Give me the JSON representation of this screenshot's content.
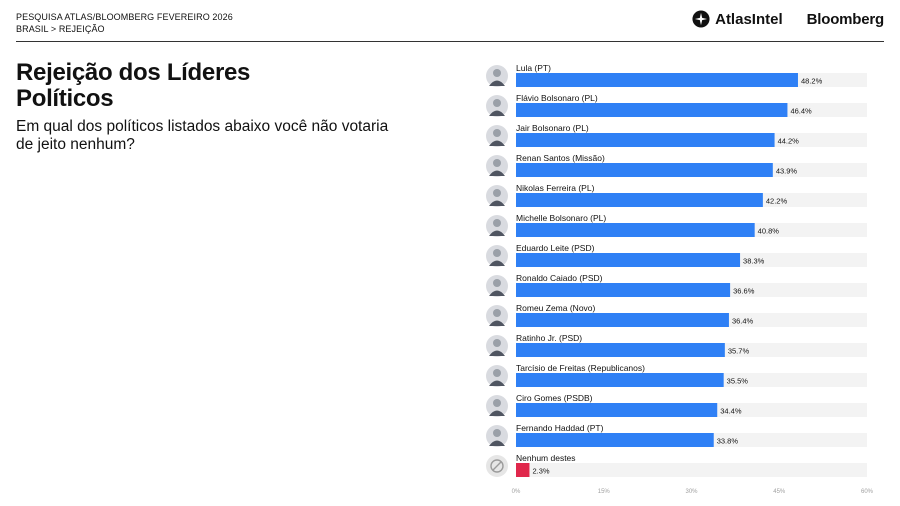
{
  "header": {
    "survey_line": "PESQUISA ATLAS/BLOOMBERG FEVEREIRO 2026",
    "breadcrumb": "BRASIL > REJEIÇÃO",
    "atlas_logo_text": "AtlasIntel",
    "bloomberg_logo_text": "Bloomberg"
  },
  "title": "Rejeição dos Líderes Políticos",
  "subtitle": "Em qual dos políticos listados abaixo você não votaria de jeito nenhum?",
  "colors": {
    "bar": "#2F80F5",
    "bar_highlight": "#E0284C",
    "track": "#F3F3F3",
    "text": "#111111"
  },
  "chart_data": {
    "type": "bar",
    "orientation": "horizontal",
    "categories": [
      "Lula (PT)",
      "Flávio Bolsonaro (PL)",
      "Jair Bolsonaro (PL)",
      "Renan Santos (Missão)",
      "Nikolas Ferreira (PL)",
      "Michelle Bolsonaro (PL)",
      "Eduardo Leite (PSD)",
      "Ronaldo Caiado (PSD)",
      "Romeu Zema (Novo)",
      "Ratinho Jr. (PSD)",
      "Tarcísio de Freitas (Republicanos)",
      "Ciro Gomes (PSDB)",
      "Fernando Haddad (PT)",
      "Nenhum destes"
    ],
    "values": [
      48.2,
      46.4,
      44.2,
      43.9,
      42.2,
      40.8,
      38.3,
      36.6,
      36.4,
      35.7,
      35.5,
      34.4,
      33.8,
      2.3
    ],
    "value_labels": [
      "48.2%",
      "46.4%",
      "44.2%",
      "43.9%",
      "42.2%",
      "40.8%",
      "38.3%",
      "36.6%",
      "36.4%",
      "35.7%",
      "35.5%",
      "34.4%",
      "33.8%",
      "2.3%"
    ],
    "xlim": [
      0,
      60
    ],
    "xticks": [
      "0%",
      "15%",
      "30%",
      "45%",
      "60%"
    ],
    "grid": false,
    "highlight_category": "Nenhum destes"
  }
}
